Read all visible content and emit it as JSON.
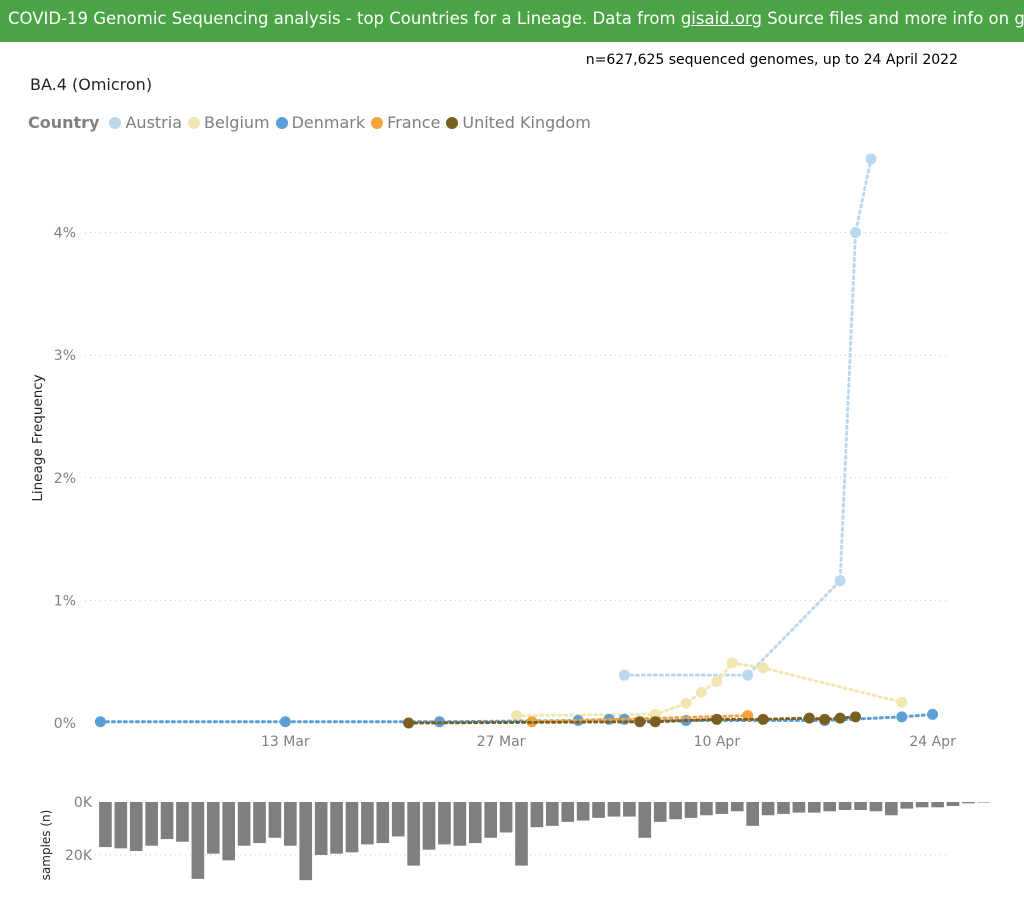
{
  "banner": {
    "prefix": "COVID-19 Genomic Sequencing analysis - top Countries for a Lineage. Data from ",
    "link1": "gisaid.org",
    "middle": " Source files and more info on ",
    "link2": "github",
    "suffix": "."
  },
  "header": {
    "ngenomes": "n=627,625 sequenced genomes, up to 24 April 2022",
    "chart_title": "BA.4 (Omicron)"
  },
  "legend": {
    "title": "Country",
    "items": [
      {
        "label": "Austria",
        "color": "#bcd8ee"
      },
      {
        "label": "Belgium",
        "color": "#f2e7b3"
      },
      {
        "label": "Denmark",
        "color": "#5d9fd5"
      },
      {
        "label": "France",
        "color": "#f5a33f"
      },
      {
        "label": "United Kingdom",
        "color": "#7a6020"
      }
    ]
  },
  "chart_data": [
    {
      "type": "line",
      "title": "BA.4 (Omicron)",
      "ylabel": "Lineage Frequency",
      "xlabel": "",
      "x_ticks": [
        "13 Mar",
        "27 Mar",
        "10 Apr",
        "24 Apr"
      ],
      "x_range": [
        "2022-02-28",
        "2022-04-25"
      ],
      "y_ticks": [
        "0%",
        "1%",
        "2%",
        "3%",
        "4%"
      ],
      "ylim": [
        0,
        4.7
      ],
      "y_unit": "%",
      "grid": true,
      "legend_position": "top-left",
      "series": [
        {
          "name": "Austria",
          "color": "#bcd8ee",
          "points": [
            [
              "2022-04-04",
              0.39
            ],
            [
              "2022-04-12",
              0.39
            ],
            [
              "2022-04-18",
              1.16
            ],
            [
              "2022-04-19",
              4.0
            ],
            [
              "2022-04-20",
              4.6
            ]
          ]
        },
        {
          "name": "Belgium",
          "color": "#f2e7b3",
          "points": [
            [
              "2022-03-28",
              0.06
            ],
            [
              "2022-04-06",
              0.07
            ],
            [
              "2022-04-08",
              0.16
            ],
            [
              "2022-04-09",
              0.25
            ],
            [
              "2022-04-10",
              0.34
            ],
            [
              "2022-04-11",
              0.49
            ],
            [
              "2022-04-13",
              0.45
            ],
            [
              "2022-04-22",
              0.17
            ]
          ]
        },
        {
          "name": "Denmark",
          "color": "#5d9fd5",
          "points": [
            [
              "2022-03-01",
              0.01
            ],
            [
              "2022-03-13",
              0.01
            ],
            [
              "2022-03-23",
              0.01
            ],
            [
              "2022-04-01",
              0.02
            ],
            [
              "2022-04-03",
              0.03
            ],
            [
              "2022-04-04",
              0.03
            ],
            [
              "2022-04-08",
              0.02
            ],
            [
              "2022-04-17",
              0.02
            ],
            [
              "2022-04-22",
              0.05
            ],
            [
              "2022-04-24",
              0.07
            ]
          ]
        },
        {
          "name": "France",
          "color": "#f5a33f",
          "points": [
            [
              "2022-03-29",
              0.01
            ],
            [
              "2022-04-12",
              0.06
            ]
          ]
        },
        {
          "name": "United Kingdom",
          "color": "#7a6020",
          "points": [
            [
              "2022-03-21",
              0.0
            ],
            [
              "2022-04-05",
              0.01
            ],
            [
              "2022-04-06",
              0.01
            ],
            [
              "2022-04-10",
              0.03
            ],
            [
              "2022-04-13",
              0.03
            ],
            [
              "2022-04-16",
              0.04
            ],
            [
              "2022-04-17",
              0.03
            ],
            [
              "2022-04-18",
              0.04
            ],
            [
              "2022-04-19",
              0.05
            ]
          ]
        }
      ]
    },
    {
      "type": "bar",
      "ylabel": "samples (n)",
      "y_ticks": [
        "0K",
        "20K"
      ],
      "ylim": [
        0,
        29000
      ],
      "color": "#7f7f7f",
      "grid": true,
      "x_range": [
        "2022-02-28",
        "2022-04-25"
      ],
      "start_date": "2022-03-01",
      "values": [
        17000,
        17500,
        18500,
        16500,
        14000,
        15000,
        29000,
        19500,
        22000,
        16500,
        15500,
        13500,
        16500,
        29500,
        20000,
        19500,
        19000,
        16000,
        15500,
        13000,
        24000,
        18000,
        16000,
        16500,
        15500,
        13500,
        11500,
        24000,
        9500,
        9000,
        7500,
        7000,
        6000,
        5500,
        5500,
        13500,
        7500,
        6500,
        6000,
        5000,
        4500,
        3500,
        9000,
        5000,
        4500,
        4000,
        4000,
        3500,
        3000,
        3000,
        3500,
        5000,
        2500,
        2000,
        2000,
        1500,
        500,
        200
      ]
    }
  ]
}
